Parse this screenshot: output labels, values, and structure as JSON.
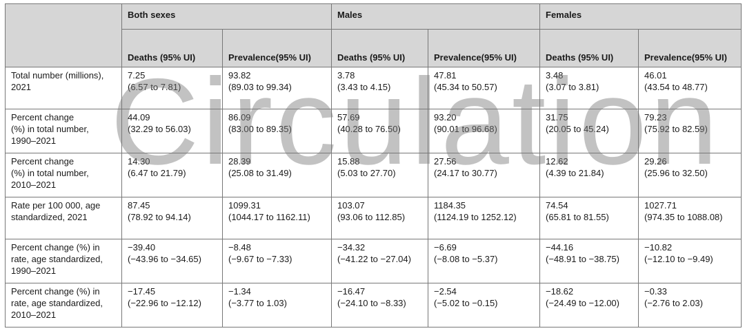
{
  "watermark": "Circulation",
  "groups": [
    "Both sexes",
    "Males",
    "Females"
  ],
  "subheaders": {
    "deaths": "Deaths (95% UI)",
    "prevalence_l1": "Prevalence",
    "prevalence_l2": "(95% UI)"
  },
  "rows": [
    {
      "label": [
        "Total number (millions),",
        "2021"
      ],
      "cells": [
        [
          "7.25",
          "(6.57 to 7.81)"
        ],
        [
          "93.82",
          "(89.03 to 99.34)"
        ],
        [
          "3.78",
          "(3.43 to 4.15)"
        ],
        [
          "47.81",
          "(45.34 to 50.57)"
        ],
        [
          "3.48",
          "(3.07 to 3.81)"
        ],
        [
          "46.01",
          "(43.54 to 48.77)"
        ]
      ]
    },
    {
      "label": [
        "Percent change",
        "(%) in total number,",
        "1990–2021"
      ],
      "cells": [
        [
          "44.09",
          "(32.29 to 56.03)"
        ],
        [
          "86.09",
          "(83.00 to 89.35)"
        ],
        [
          "57.69",
          "(40.28 to 76.50)"
        ],
        [
          "93.20",
          "(90.01 to 96.68)"
        ],
        [
          "31.75",
          "(20.05 to 45.24)"
        ],
        [
          "79.23",
          "(75.92 to 82.59)"
        ]
      ]
    },
    {
      "label": [
        "Percent change",
        "(%) in total number,",
        "2010–2021"
      ],
      "cells": [
        [
          "14.30",
          "(6.47 to 21.79)"
        ],
        [
          "28.39",
          "(25.08 to 31.49)"
        ],
        [
          "15.88",
          "(5.03 to 27.70)"
        ],
        [
          "27.56",
          "(24.17 to 30.77)"
        ],
        [
          "12.62",
          "(4.39 to 21.84)"
        ],
        [
          "29.26",
          "(25.96 to 32.50)"
        ]
      ]
    },
    {
      "label": [
        "Rate per 100 000, age",
        "standardized, 2021"
      ],
      "cells": [
        [
          "87.45",
          "(78.92 to 94.14)"
        ],
        [
          "1099.31",
          "(1044.17 to 1162.11)"
        ],
        [
          "103.07",
          "(93.06 to 112.85)"
        ],
        [
          "1184.35",
          "(1124.19 to 1252.12)"
        ],
        [
          "74.54",
          "(65.81 to 81.55)"
        ],
        [
          "1027.71",
          "(974.35 to 1088.08)"
        ]
      ]
    },
    {
      "label": [
        "Percent change (%) in",
        "rate, age standardized,",
        "1990–2021"
      ],
      "cells": [
        [
          "−39.40",
          "(−43.96 to −34.65)"
        ],
        [
          "−8.48",
          "(−9.67 to −7.33)"
        ],
        [
          "−34.32",
          "(−41.22 to −27.04)"
        ],
        [
          "−6.69",
          "(−8.08 to −5.37)"
        ],
        [
          "−44.16",
          "(−48.91 to −38.75)"
        ],
        [
          "−10.82",
          "(−12.10 to −9.49)"
        ]
      ]
    },
    {
      "label": [
        "Percent change (%) in",
        "rate, age standardized,",
        "2010–2021"
      ],
      "cells": [
        [
          "−17.45",
          "(−22.96 to −12.12)"
        ],
        [
          "−1.34",
          "(−3.77 to 1.03)"
        ],
        [
          "−16.47",
          "(−24.10 to −8.33)"
        ],
        [
          "−2.54",
          "(−5.02 to −0.15)"
        ],
        [
          "−18.62",
          "(−24.49 to −12.00)"
        ],
        [
          "−0.33",
          "(−2.76 to 2.03)"
        ]
      ]
    }
  ]
}
